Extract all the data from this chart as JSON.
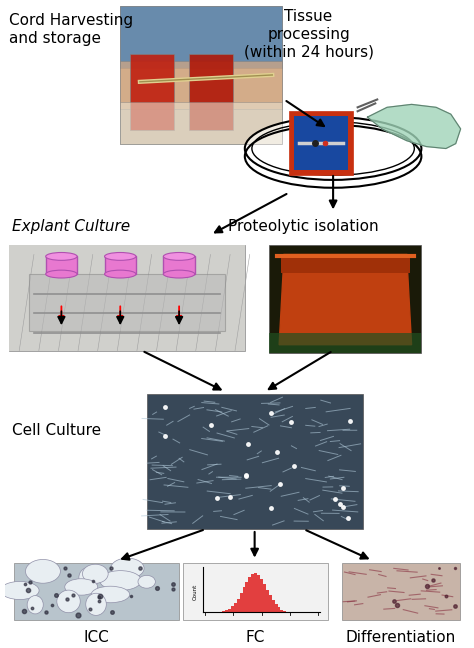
{
  "bg_color": "#ffffff",
  "labels": {
    "cord": "Cord Harvesting\nand storage",
    "tissue": "Tissue\nprocessing\n(within 24 hours)",
    "explant": "Explant Culture",
    "proteolytic": "Proteolytic isolation",
    "cell_culture": "Cell Culture",
    "icc": "ICC",
    "fc": "FC",
    "diff": "Differentiation"
  },
  "label_fontsize": 11,
  "sub_fontsize": 8,
  "small_fontsize": 6
}
